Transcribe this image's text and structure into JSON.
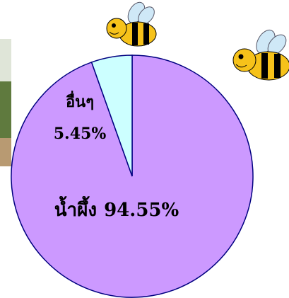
{
  "chart_data": {
    "type": "pie",
    "categories": [
      "อื่นๆ",
      "น้ำผึ้ง"
    ],
    "values": [
      5.45,
      94.55
    ],
    "value_labels": [
      "5.45%",
      "94.55%"
    ],
    "colors": [
      "#ccffff",
      "#cc99ff"
    ]
  }
}
